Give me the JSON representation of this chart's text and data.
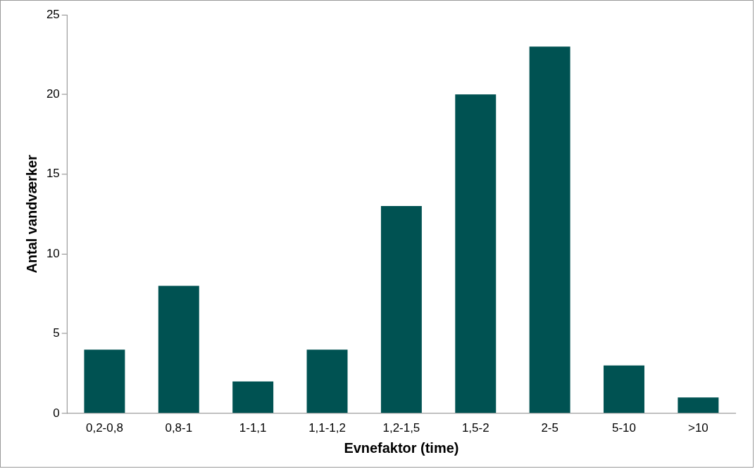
{
  "chart_data": {
    "type": "bar",
    "xlabel": "Evnefaktor (time)",
    "ylabel": "Antal vandværker",
    "categories": [
      "0,2-0,8",
      "0,8-1",
      "1-1,1",
      "1,1-1,2",
      "1,2-1,5",
      "1,5-2",
      "2-5",
      "5-10",
      ">10"
    ],
    "values": [
      4,
      8,
      2,
      4,
      13,
      20,
      23,
      3,
      1
    ],
    "color": "#005252",
    "ylim": [
      0,
      25
    ],
    "yticks": [
      0,
      5,
      10,
      15,
      20,
      25
    ],
    "grid": false,
    "legend": false
  }
}
